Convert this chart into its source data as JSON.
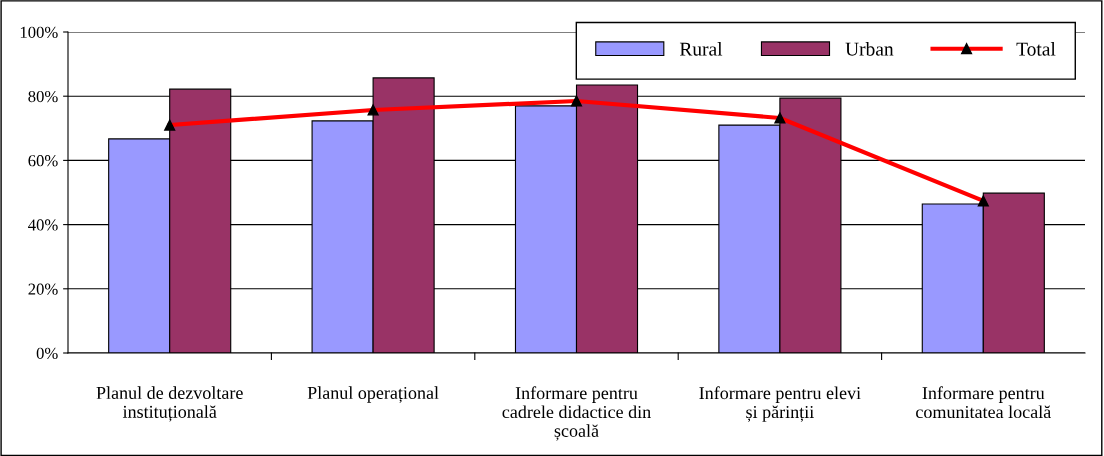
{
  "chart_data": {
    "type": "bar",
    "categories": [
      "Planul de dezvoltare\ninstituțională",
      "Planul operațional",
      "Informare pentru\ncadrele didactice din\nșcoală",
      "Informare pentru elevi\nși părinții",
      "Informare pentru\ncomunitatea locală"
    ],
    "series": [
      {
        "name": "Rural",
        "color": "#9999ff",
        "values": [
          66.7,
          72.3,
          77.0,
          71.0,
          46.4
        ]
      },
      {
        "name": "Urban",
        "color": "#993366",
        "values": [
          82.2,
          85.7,
          83.5,
          79.4,
          49.8
        ]
      },
      {
        "name": "Total",
        "type": "line",
        "color": "#ff0000",
        "marker": "triangle",
        "values": [
          71.0,
          75.7,
          78.5,
          73.2,
          47.4
        ]
      }
    ],
    "ylim": [
      0,
      100
    ],
    "yticks": [
      {
        "value": 0,
        "label": "0%"
      },
      {
        "value": 20,
        "label": "20%"
      },
      {
        "value": 40,
        "label": "40%"
      },
      {
        "value": 60,
        "label": "60%"
      },
      {
        "value": 80,
        "label": "80%"
      },
      {
        "value": 100,
        "label": "100%"
      }
    ],
    "grid": "y",
    "legend": "top right"
  }
}
